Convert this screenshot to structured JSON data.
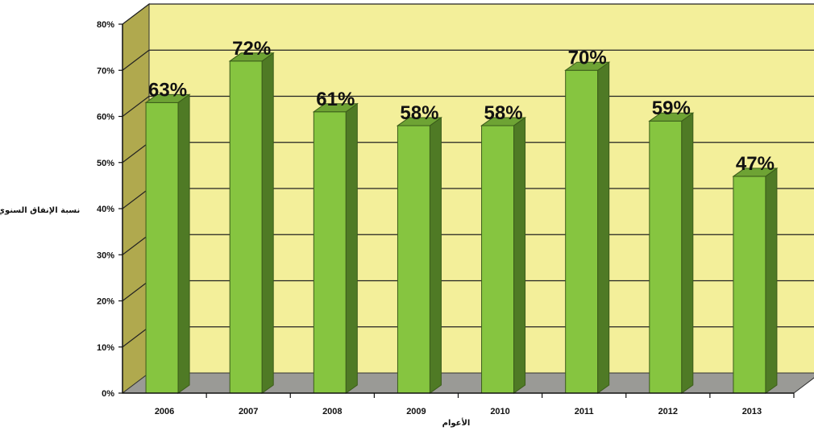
{
  "chart_data": {
    "type": "bar",
    "title": "",
    "xlabel": "الأعوام",
    "ylabel": "نسبة الإنفاق السنوي",
    "categories": [
      "2006",
      "2007",
      "2008",
      "2009",
      "2010",
      "2011",
      "2012",
      "2013"
    ],
    "values": [
      63,
      72,
      61,
      58,
      58,
      70,
      59,
      47
    ],
    "data_labels": [
      "63%",
      "72%",
      "61%",
      "58%",
      "58%",
      "70%",
      "59%",
      "47%"
    ],
    "ylim": [
      0,
      80
    ],
    "yticks": [
      "0%",
      "10%",
      "20%",
      "30%",
      "40%",
      "50%",
      "60%",
      "70%",
      "80%"
    ],
    "grid": true,
    "legend": "none",
    "colors": {
      "bar_front": "#86c540",
      "bar_side": "#4f7a25",
      "bar_top": "#6ea334",
      "back_wall": "#f3ef9a",
      "left_wall": "#b0a94e",
      "floor": "#9a9a96",
      "gridline": "#222222"
    }
  }
}
